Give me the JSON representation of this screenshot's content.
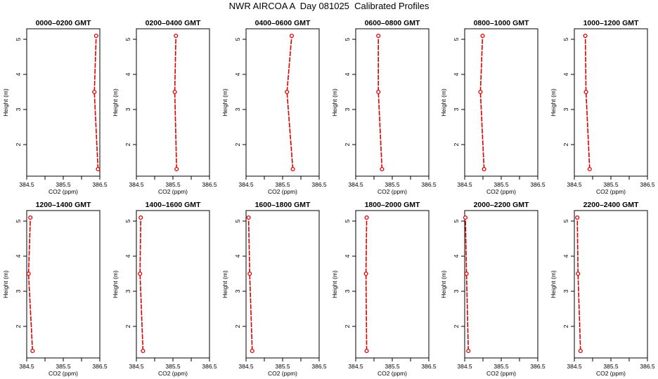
{
  "page_title": "NWR AIRCOA A  Day 081025  Calibrated Profiles",
  "colors": {
    "profile_line": "#dd0000",
    "profile_point": "#dd0000",
    "axis": "#000000"
  },
  "chart_data": [
    {
      "type": "line",
      "title": "0000–0200 GMT",
      "xlabel": "CO2 (ppm)",
      "ylabel": "Height (m)",
      "xlim": [
        384.5,
        386.5
      ],
      "ylim": [
        1.3,
        5.1
      ],
      "xticks": [
        "384.5",
        "385.5",
        "386.5"
      ],
      "yticks": [
        "2",
        "3",
        "4",
        "5"
      ],
      "grid": false,
      "series": [
        {
          "x": [
            386.45,
            386.35,
            386.4
          ],
          "y": [
            1.3,
            3.5,
            5.1
          ]
        }
      ]
    },
    {
      "type": "line",
      "title": "0200–0400 GMT",
      "xlabel": "CO2 (ppm)",
      "ylabel": "Height (m)",
      "xlim": [
        384.5,
        386.5
      ],
      "ylim": [
        1.3,
        5.1
      ],
      "xticks": [
        "384.5",
        "385.5",
        "386.5"
      ],
      "yticks": [
        "2",
        "3",
        "4",
        "5"
      ],
      "grid": false,
      "series": [
        {
          "x": [
            385.6,
            385.55,
            385.58
          ],
          "y": [
            1.3,
            3.5,
            5.1
          ]
        }
      ]
    },
    {
      "type": "line",
      "title": "0400–0600 GMT",
      "xlabel": "CO2 (ppm)",
      "ylabel": "Height (m)",
      "xlim": [
        384.5,
        386.5
      ],
      "ylim": [
        1.3,
        5.1
      ],
      "xticks": [
        "384.5",
        "385.5",
        "386.5"
      ],
      "yticks": [
        "2",
        "3",
        "4",
        "5"
      ],
      "grid": false,
      "series": [
        {
          "x": [
            385.78,
            385.62,
            385.75
          ],
          "y": [
            1.3,
            3.5,
            5.1
          ]
        }
      ]
    },
    {
      "type": "line",
      "title": "0600–0800 GMT",
      "xlabel": "CO2 (ppm)",
      "ylabel": "Height (m)",
      "xlim": [
        384.5,
        386.5
      ],
      "ylim": [
        1.3,
        5.1
      ],
      "xticks": [
        "384.5",
        "385.5",
        "386.5"
      ],
      "yticks": [
        "2",
        "3",
        "4",
        "5"
      ],
      "grid": false,
      "series": [
        {
          "x": [
            385.22,
            385.12,
            385.12
          ],
          "y": [
            1.3,
            3.5,
            5.1
          ]
        }
      ]
    },
    {
      "type": "line",
      "title": "0800–1000 GMT",
      "xlabel": "CO2 (ppm)",
      "ylabel": "Height (m)",
      "xlim": [
        384.5,
        386.5
      ],
      "ylim": [
        1.3,
        5.1
      ],
      "xticks": [
        "384.5",
        "385.5",
        "386.5"
      ],
      "yticks": [
        "2",
        "3",
        "4",
        "5"
      ],
      "grid": false,
      "series": [
        {
          "x": [
            385.03,
            384.93,
            384.99
          ],
          "y": [
            1.3,
            3.5,
            5.1
          ]
        }
      ]
    },
    {
      "type": "line",
      "title": "1000–1200 GMT",
      "xlabel": "CO2 (ppm)",
      "ylabel": "Height (m)",
      "xlim": [
        384.5,
        386.5
      ],
      "ylim": [
        1.3,
        5.1
      ],
      "xticks": [
        "384.5",
        "385.5",
        "386.5"
      ],
      "yticks": [
        "2",
        "3",
        "4",
        "5"
      ],
      "grid": false,
      "series": [
        {
          "x": [
            384.92,
            384.82,
            384.8
          ],
          "y": [
            1.3,
            3.5,
            5.1
          ]
        }
      ]
    },
    {
      "type": "line",
      "title": "1200–1400 GMT",
      "xlabel": "CO2 (ppm)",
      "ylabel": "Height (m)",
      "xlim": [
        384.5,
        386.5
      ],
      "ylim": [
        1.3,
        5.1
      ],
      "xticks": [
        "384.5",
        "385.5",
        "386.5"
      ],
      "yticks": [
        "2",
        "3",
        "4",
        "5"
      ],
      "grid": false,
      "series": [
        {
          "x": [
            384.66,
            384.55,
            384.6
          ],
          "y": [
            1.3,
            3.5,
            5.1
          ]
        }
      ]
    },
    {
      "type": "line",
      "title": "1400–1600 GMT",
      "xlabel": "CO2 (ppm)",
      "ylabel": "Height (m)",
      "xlim": [
        384.5,
        386.5
      ],
      "ylim": [
        1.3,
        5.1
      ],
      "xticks": [
        "384.5",
        "385.5",
        "386.5"
      ],
      "yticks": [
        "2",
        "3",
        "4",
        "5"
      ],
      "grid": false,
      "series": [
        {
          "x": [
            384.68,
            384.6,
            384.62
          ],
          "y": [
            1.3,
            3.5,
            5.1
          ]
        }
      ]
    },
    {
      "type": "line",
      "title": "1600–1800 GMT",
      "xlabel": "CO2 (ppm)",
      "ylabel": "Height (m)",
      "xlim": [
        384.5,
        386.5
      ],
      "ylim": [
        1.3,
        5.1
      ],
      "xticks": [
        "384.5",
        "385.5",
        "386.5"
      ],
      "yticks": [
        "2",
        "3",
        "4",
        "5"
      ],
      "grid": false,
      "series": [
        {
          "x": [
            384.67,
            384.6,
            384.57
          ],
          "y": [
            1.3,
            3.5,
            5.1
          ]
        }
      ]
    },
    {
      "type": "line",
      "title": "1800–2000 GMT",
      "xlabel": "CO2 (ppm)",
      "ylabel": "Height (m)",
      "xlim": [
        384.5,
        386.5
      ],
      "ylim": [
        1.3,
        5.1
      ],
      "xticks": [
        "384.5",
        "385.5",
        "386.5"
      ],
      "yticks": [
        "2",
        "3",
        "4",
        "5"
      ],
      "grid": false,
      "series": [
        {
          "x": [
            384.8,
            384.78,
            384.8
          ],
          "y": [
            1.3,
            3.5,
            5.1
          ]
        }
      ]
    },
    {
      "type": "line",
      "title": "2000–2200 GMT",
      "xlabel": "CO2 (ppm)",
      "ylabel": "Height (m)",
      "xlim": [
        384.5,
        386.5
      ],
      "ylim": [
        1.3,
        5.1
      ],
      "xticks": [
        "384.5",
        "385.5",
        "386.5"
      ],
      "yticks": [
        "2",
        "3",
        "4",
        "5"
      ],
      "grid": false,
      "series": [
        {
          "x": [
            384.6,
            384.55,
            384.52
          ],
          "y": [
            1.3,
            3.5,
            5.1
          ]
        }
      ]
    },
    {
      "type": "line",
      "title": "2200–2400 GMT",
      "xlabel": "CO2 (ppm)",
      "ylabel": "Height (m)",
      "xlim": [
        384.5,
        386.5
      ],
      "ylim": [
        1.3,
        5.1
      ],
      "xticks": [
        "384.5",
        "385.5",
        "386.5"
      ],
      "yticks": [
        "2",
        "3",
        "4",
        "5"
      ],
      "grid": false,
      "series": [
        {
          "x": [
            384.67,
            384.6,
            384.58
          ],
          "y": [
            1.3,
            3.5,
            5.1
          ]
        }
      ]
    }
  ]
}
